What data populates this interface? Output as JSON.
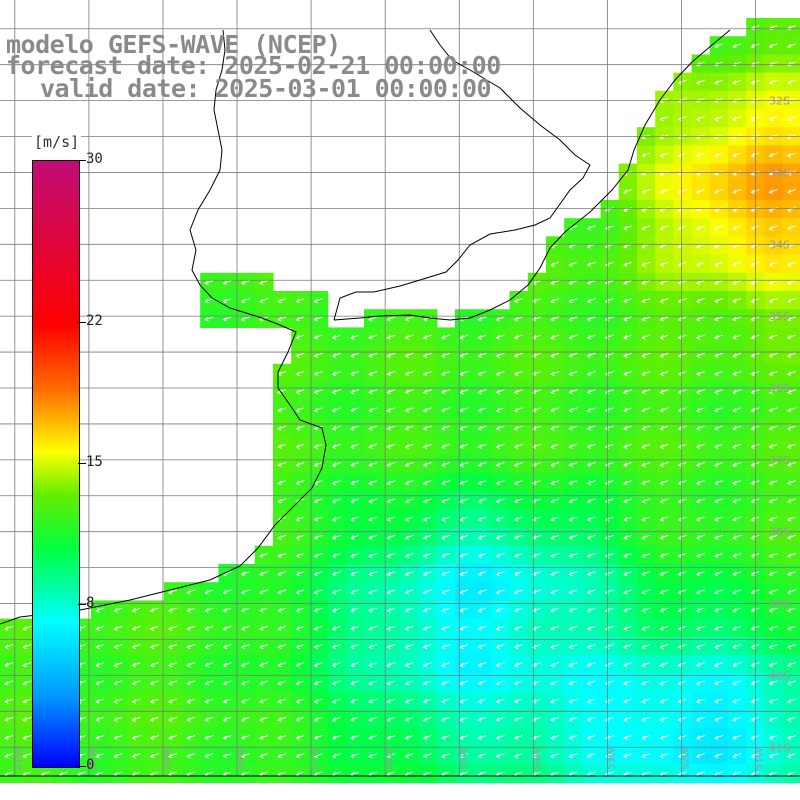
{
  "title": {
    "line1": "modelo GEFS-WAVE (NCEP)",
    "line2": "forecast date: 2025-02-21 00:00:00",
    "line3": "valid date: 2025-03-01 00:00:00"
  },
  "colorbar": {
    "unit": "[m/s]",
    "max": 30,
    "min": 0,
    "ticks": [
      {
        "value": 30,
        "label": "30"
      },
      {
        "value": 22,
        "label": "22"
      },
      {
        "value": 15,
        "label": "15"
      },
      {
        "value": 8,
        "label": "8"
      },
      {
        "value": 0,
        "label": "0"
      }
    ]
  },
  "lat_labels": [
    "32S",
    "33S",
    "34S",
    "35S",
    "36S",
    "37S",
    "38S",
    "39S",
    "40S",
    "41S"
  ],
  "lon_labels": [
    "61W",
    "60W",
    "59W",
    "58W",
    "57W",
    "56W",
    "55W",
    "54W",
    "53W",
    "52W",
    "51W"
  ],
  "extent": {
    "lon_min": -61.2,
    "lon_max": -50.4,
    "lat_min": -41.4,
    "lat_max": -30.6
  },
  "colors": {
    "land": "#ffffff",
    "grid": "#7a7a7a",
    "coast": "#000000",
    "arrows": "#ffffff",
    "title": "#8a8a8a"
  }
}
